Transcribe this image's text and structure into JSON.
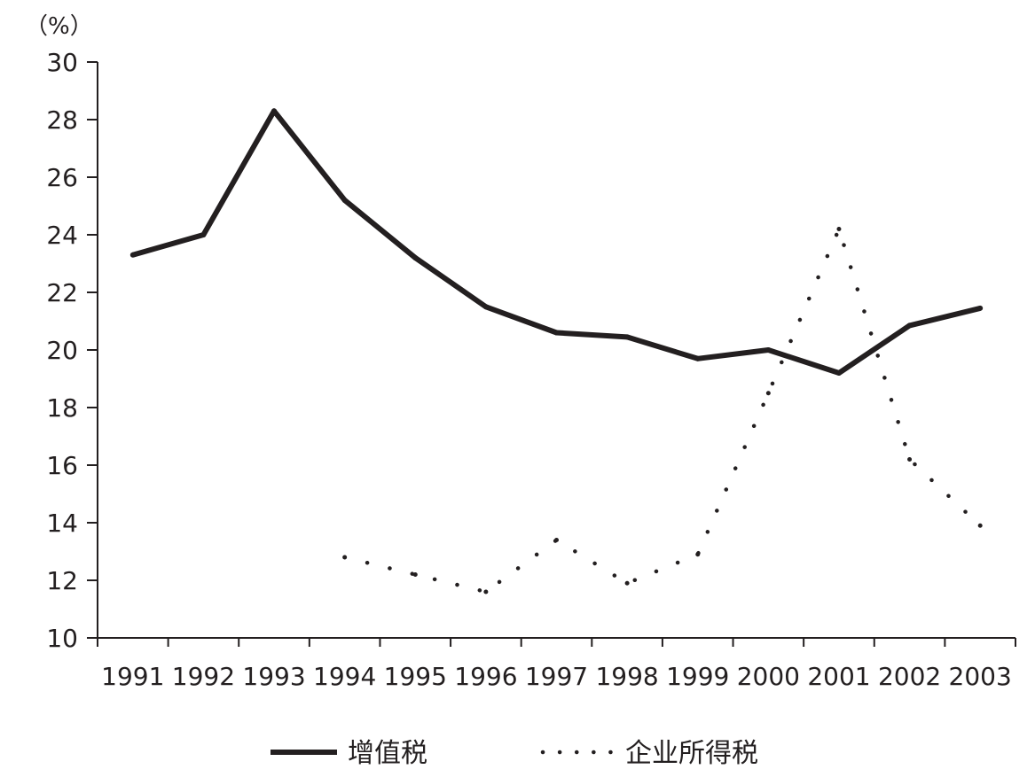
{
  "chart_data": {
    "type": "line",
    "unit_label": "（%）",
    "categories": [
      "1991",
      "1992",
      "1993",
      "1994",
      "1995",
      "1996",
      "1997",
      "1998",
      "1999",
      "2000",
      "2001",
      "2002",
      "2003"
    ],
    "ylim": [
      10,
      30
    ],
    "yticks": [
      "10",
      "12",
      "14",
      "16",
      "18",
      "20",
      "22",
      "24",
      "26",
      "28",
      "30"
    ],
    "grid": false,
    "legend_position": "bottom",
    "series": [
      {
        "name": "增值税",
        "style": "solid",
        "color": "#231f20",
        "values": [
          23.3,
          24.0,
          28.3,
          25.2,
          23.2,
          21.5,
          20.6,
          20.45,
          19.7,
          20.0,
          19.2,
          20.85,
          21.45
        ]
      },
      {
        "name": "企业所得税",
        "style": "dotted",
        "color": "#231f20",
        "values": [
          null,
          null,
          null,
          12.8,
          12.2,
          11.6,
          13.4,
          11.9,
          12.9,
          18.5,
          24.2,
          16.2,
          13.9
        ]
      }
    ]
  }
}
